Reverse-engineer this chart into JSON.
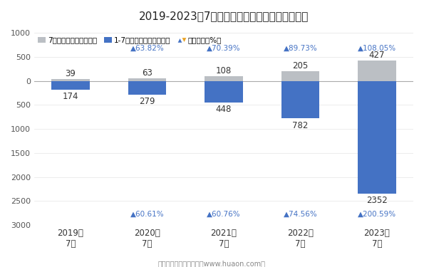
{
  "title": "2019-2023年7月郑州商品交易所棉花期权成交量",
  "years": [
    "2019年\n7月",
    "2020年\n7月",
    "2021年\n7月",
    "2022年\n7月",
    "2023年\n7月"
  ],
  "july_values": [
    39,
    63,
    108,
    205,
    427
  ],
  "cumulative_values": [
    174,
    279,
    448,
    782,
    2352
  ],
  "growth_top_labels": [
    "",
    "▲63.82%",
    "▲70.39%",
    "▲89.73%",
    "▲108.05%"
  ],
  "growth_bottom_labels": [
    "",
    "▲60.61%",
    "▲60.76%",
    "▲74.56%",
    "▲200.59%"
  ],
  "bar_color_july": "#bbbfc4",
  "bar_color_cumulative": "#4472c4",
  "growth_color": "#4472c4",
  "footer": "制图：华经产业研究院（www.huaon.com）",
  "legend_july": "7月期权成交量（万手）",
  "legend_cum": "1-7月期权成交量（万手）",
  "legend_growth": "同比增长（%）"
}
